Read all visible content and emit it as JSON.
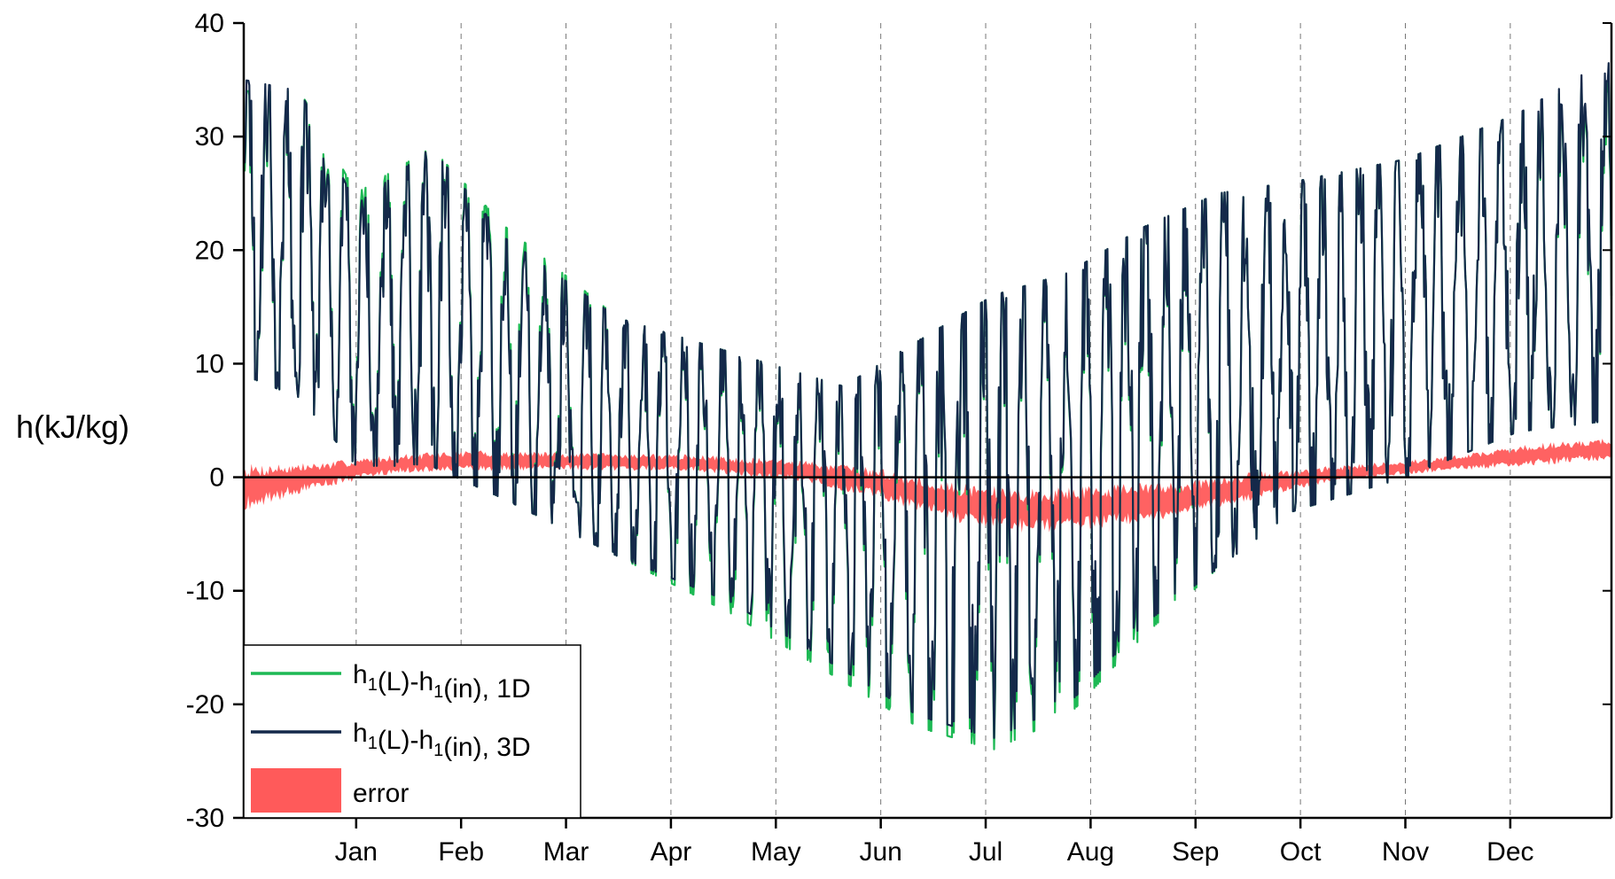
{
  "chart_data": {
    "type": "line",
    "title": "",
    "xlabel": "",
    "ylabel": "h(kJ/kg)",
    "ylim": [
      -30,
      40
    ],
    "yticks": [
      -30,
      -20,
      -10,
      0,
      10,
      20,
      30,
      40
    ],
    "ytick_labels": [
      "-30",
      "-20",
      "-10",
      "0",
      "10",
      "20",
      "30",
      "40"
    ],
    "xlim": [
      0,
      365
    ],
    "x_unit": "day of year",
    "month_ticks": [
      {
        "label": "Jan",
        "day": 30
      },
      {
        "label": "Feb",
        "day": 58
      },
      {
        "label": "Mar",
        "day": 86
      },
      {
        "label": "Apr",
        "day": 114
      },
      {
        "label": "May",
        "day": 142
      },
      {
        "label": "Jun",
        "day": 170
      },
      {
        "label": "Jul",
        "day": 198
      },
      {
        "label": "Aug",
        "day": 226
      },
      {
        "label": "Sep",
        "day": 254
      },
      {
        "label": "Oct",
        "day": 282
      },
      {
        "label": "Nov",
        "day": 310
      },
      {
        "label": "Dec",
        "day": 338
      }
    ],
    "grid": "vertical dashed at month ticks",
    "zero_line": true,
    "legend_position": "bottom-left",
    "series": [
      {
        "key": "1d",
        "type": "line",
        "color": "#1db954",
        "legend_prefix": "h",
        "legend_sub1": "1",
        "legend_mid": "(L)-h",
        "legend_sub2": "1",
        "legend_suffix": "(in), 1D",
        "envelope_day": [
          0,
          15,
          30,
          50,
          70,
          100,
          130,
          160,
          180,
          200,
          220,
          240,
          260,
          280,
          310,
          340,
          365
        ],
        "envelope_upper": [
          34,
          34,
          25,
          29,
          22,
          14,
          11,
          8,
          12,
          16,
          18,
          22,
          25,
          26,
          28,
          32,
          36
        ],
        "envelope_lower": [
          9,
          7,
          1,
          1,
          -2,
          -7,
          -12,
          -18,
          -22,
          -24,
          -21,
          -14,
          -8,
          -3,
          0,
          4,
          5
        ]
      },
      {
        "key": "3d",
        "type": "line",
        "color": "#14294a",
        "legend_prefix": "h",
        "legend_sub1": "1",
        "legend_mid": "(L)-h",
        "legend_sub2": "1",
        "legend_suffix": "(in), 3D",
        "envelope_day": [
          0,
          15,
          30,
          50,
          70,
          100,
          130,
          160,
          180,
          200,
          220,
          240,
          260,
          280,
          310,
          340,
          365
        ],
        "envelope_upper": [
          35,
          34,
          24,
          29,
          21,
          14,
          11,
          8,
          12,
          16,
          18,
          22,
          25,
          26,
          28,
          32,
          37
        ],
        "envelope_lower": [
          9,
          7,
          1,
          1,
          -2,
          -7,
          -11,
          -17,
          -21,
          -23,
          -20,
          -13,
          -8,
          -3,
          0,
          4,
          5
        ]
      },
      {
        "key": "error",
        "type": "area",
        "color": "#ff5a5a",
        "legend_label": "error",
        "envelope_day": [
          0,
          20,
          40,
          60,
          90,
          120,
          150,
          170,
          190,
          210,
          230,
          250,
          270,
          290,
          320,
          345,
          365
        ],
        "envelope_upper": [
          1.2,
          1.3,
          2.0,
          2.4,
          2.2,
          2.0,
          1.5,
          0.8,
          -0.5,
          -1.0,
          -0.6,
          -0.3,
          0.5,
          1.0,
          1.8,
          3.0,
          3.5
        ],
        "envelope_lower": [
          -3.0,
          -1.0,
          0.3,
          0.5,
          0.6,
          0.5,
          -0.5,
          -2.0,
          -4.0,
          -5.0,
          -4.5,
          -3.5,
          -2.0,
          -0.5,
          0.5,
          1.0,
          1.5
        ]
      }
    ]
  }
}
